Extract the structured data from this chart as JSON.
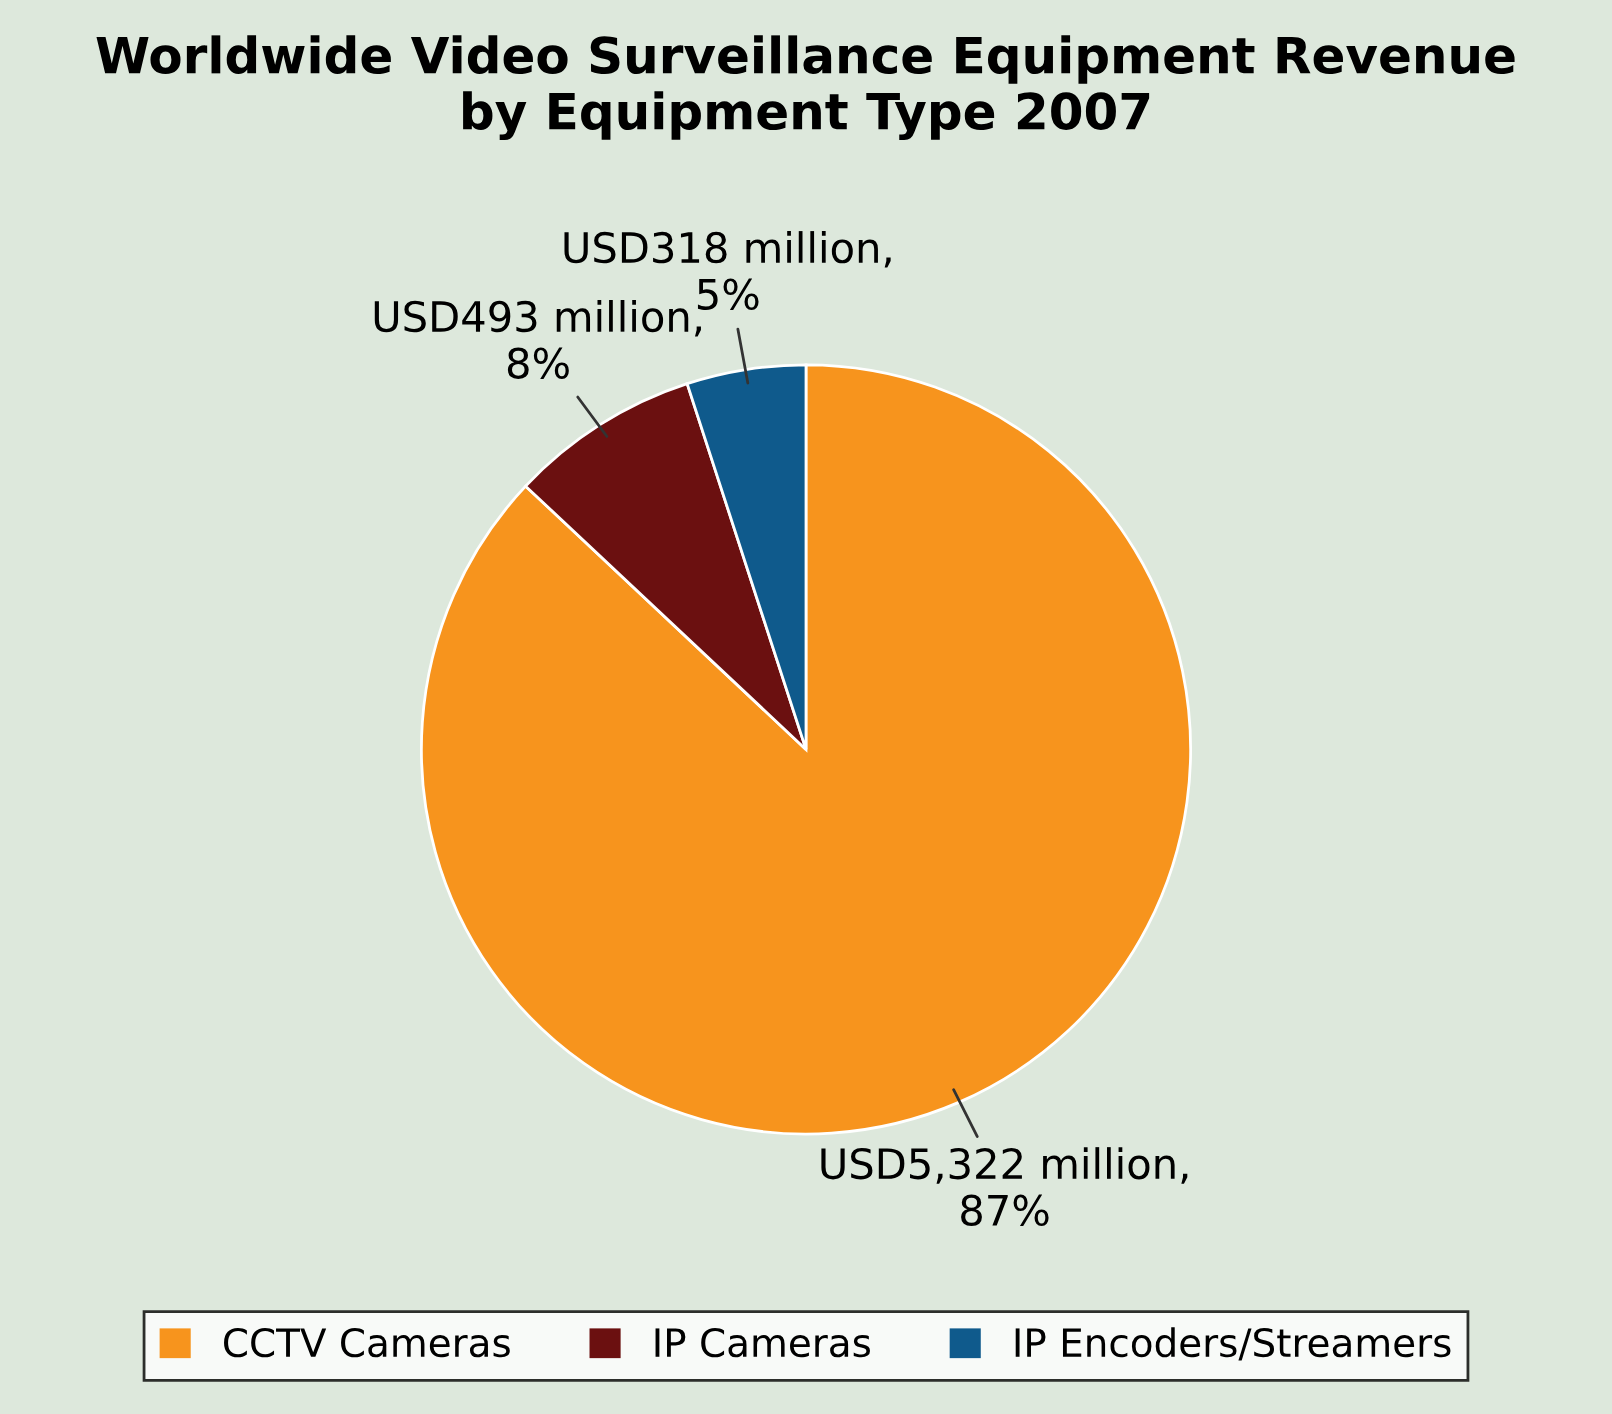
{
  "chart_data": {
    "type": "pie",
    "title": "Worldwide Video Surveillance Equipment Revenue\nby Equipment Type 2007",
    "categories": [
      "CCTV Cameras",
      "IP Cameras",
      "IP Encoders/Streamers"
    ],
    "values": [
      87,
      8,
      5
    ],
    "colors": [
      "#f7941d",
      "#6b1010",
      "#0f5a8c"
    ],
    "value_labels": [
      "USD5,322 million,\n87%",
      "USD493 million,\n8%",
      "USD318 million,\n5%"
    ],
    "legend": "bottom"
  }
}
